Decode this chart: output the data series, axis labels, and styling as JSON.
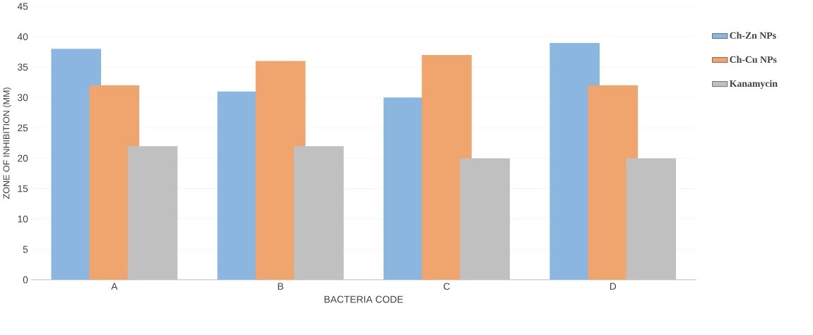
{
  "chart_data": {
    "type": "bar",
    "xlabel": "BACTERIA  CODE",
    "ylabel": "ZONE OF INHIBITION (MM)",
    "categories": [
      "A",
      "B",
      "C",
      "D"
    ],
    "series": [
      {
        "name": "Ch-Zn NPs",
        "color": "#8ab6e0",
        "values": [
          38,
          31,
          30,
          39
        ]
      },
      {
        "name": "Ch-Cu NPs",
        "color": "#f0a46e",
        "values": [
          32,
          36,
          37,
          32
        ]
      },
      {
        "name": "Kanamycin",
        "color": "#c0c0c0",
        "values": [
          22,
          22,
          20,
          20
        ]
      }
    ],
    "ylim": [
      0,
      45
    ],
    "yticks": [
      0,
      5,
      10,
      15,
      20,
      25,
      30,
      35,
      40,
      45
    ],
    "grid": "y",
    "legend": "right"
  }
}
